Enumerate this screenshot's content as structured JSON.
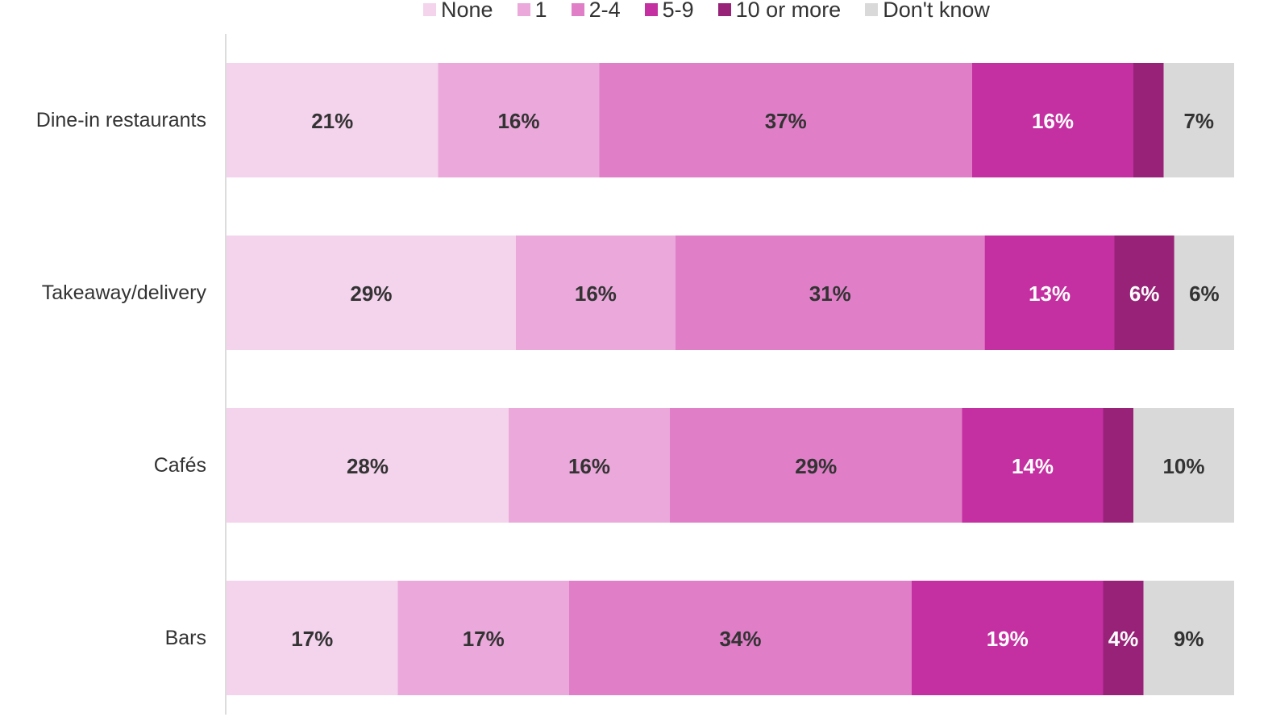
{
  "chart_data": {
    "type": "bar",
    "orientation": "horizontal",
    "stacked": true,
    "title": "",
    "xlabel": "",
    "ylabel": "",
    "xlim": [
      0,
      100
    ],
    "grid": false,
    "legend_position": "top",
    "categories": [
      "Dine-in restaurants",
      "Takeaway/delivery",
      "Cafés",
      "Bars"
    ],
    "series": [
      {
        "name": "None",
        "color": "#f4d3ec",
        "label_color": "#333333",
        "values": [
          21,
          29,
          28,
          17
        ],
        "labels": [
          "21%",
          "29%",
          "28%",
          "17%"
        ]
      },
      {
        "name": "1",
        "color": "#eaa8db",
        "label_color": "#333333",
        "values": [
          16,
          16,
          16,
          17
        ],
        "labels": [
          "16%",
          "16%",
          "16%",
          "17%"
        ]
      },
      {
        "name": "2-4",
        "color": "#e07fc8",
        "label_color": "#333333",
        "values": [
          37,
          31,
          29,
          34
        ],
        "labels": [
          "37%",
          "31%",
          "29%",
          "34%"
        ]
      },
      {
        "name": "5-9",
        "color": "#c42fa1",
        "label_color": "#ffffff",
        "values": [
          16,
          13,
          14,
          19
        ],
        "labels": [
          "16%",
          "13%",
          "14%",
          "19%"
        ]
      },
      {
        "name": "10 or more",
        "color": "#972277",
        "label_color": "#ffffff",
        "values": [
          3,
          6,
          3,
          4
        ],
        "labels": [
          "",
          "6%",
          "",
          "4%"
        ]
      },
      {
        "name": "Don't know",
        "color": "#d9d9d9",
        "label_color": "#333333",
        "values": [
          7,
          6,
          10,
          9
        ],
        "labels": [
          "7%",
          "6%",
          "10%",
          "9%"
        ]
      }
    ]
  }
}
